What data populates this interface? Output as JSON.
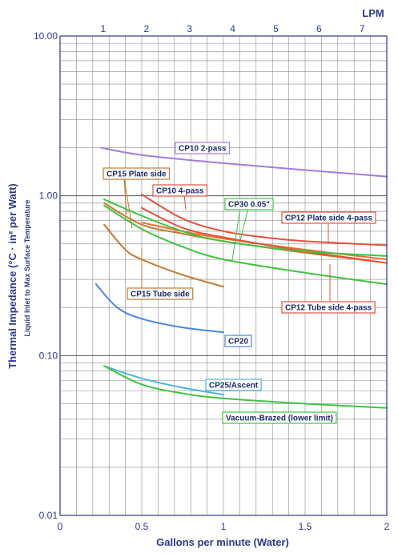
{
  "chart_data": {
    "type": "line",
    "x_axis": {
      "label": "Gallons per minute (Water)",
      "range": [
        0,
        2
      ],
      "ticks": [
        0,
        0.5,
        1,
        1.5,
        2
      ],
      "tick_labels": [
        "0",
        "0.5",
        "1",
        "1.5",
        "2"
      ]
    },
    "secondary_x_axis": {
      "label": "LPM",
      "ticks": [
        1,
        2,
        3,
        4,
        5,
        6,
        7
      ],
      "tick_labels": [
        "1",
        "2",
        "3",
        "4",
        "5",
        "6",
        "7"
      ]
    },
    "y_axis": {
      "label": "Thermal Impedance (°C · in² per Watt)",
      "sublabel": "Liquid Inlet to Max Surface Temperature",
      "scale": "log",
      "range": [
        0.01,
        10
      ],
      "ticks": [
        0.01,
        0.1,
        1,
        10
      ],
      "tick_labels": [
        "0.01",
        "0.10",
        "1.00",
        "10.00"
      ]
    },
    "grid": true,
    "series": [
      {
        "name": "CP10 2-pass",
        "color": "#a678e0",
        "x": [
          0.25,
          0.5,
          1.0,
          1.5,
          2.0
        ],
        "y": [
          2.0,
          1.8,
          1.6,
          1.45,
          1.32
        ]
      },
      {
        "name": "CP10 4-pass",
        "color": "#e2523a",
        "x": [
          0.5,
          0.75,
          1.0,
          1.25,
          1.5,
          2.0
        ],
        "y": [
          1.02,
          0.72,
          0.6,
          0.55,
          0.52,
          0.49
        ]
      },
      {
        "name": "CP15 Plate side",
        "color": "#c47a2e",
        "x": [
          0.27,
          0.5,
          0.75,
          1.0,
          1.5,
          2.0
        ],
        "y": [
          0.9,
          0.66,
          0.58,
          0.52,
          0.44,
          0.38
        ]
      },
      {
        "name": "CP15 Tube side",
        "color": "#c47a2e",
        "x": [
          0.27,
          0.4,
          0.5,
          0.75,
          1.0
        ],
        "y": [
          0.66,
          0.46,
          0.4,
          0.32,
          0.27
        ]
      },
      {
        "name": "CP12 Plate side 4-pass",
        "color": "#f07030",
        "x": [
          0.5,
          0.75,
          1.0,
          1.5,
          2.0
        ],
        "y": [
          0.68,
          0.6,
          0.54,
          0.46,
          0.4
        ]
      },
      {
        "name": "CP12 Tube side 4-pass",
        "color": "#e2523a",
        "x": [
          0.5,
          0.75,
          1.0,
          1.5,
          2.0
        ],
        "y": [
          0.84,
          0.63,
          0.55,
          0.45,
          0.38
        ]
      },
      {
        "name": "CP30 0.05\"",
        "color": "#3ec43e",
        "x": [
          0.27,
          0.5,
          0.75,
          1.0,
          1.5,
          2.0
        ],
        "y": [
          0.95,
          0.75,
          0.6,
          0.52,
          0.45,
          0.42
        ]
      },
      {
        "name": "CP30 0.05\"",
        "color": "#3ec43e",
        "x": [
          0.27,
          0.5,
          0.75,
          1.0,
          1.5,
          2.0
        ],
        "y": [
          0.87,
          0.62,
          0.48,
          0.4,
          0.33,
          0.28
        ]
      },
      {
        "name": "CP20",
        "color": "#4a86e0",
        "x": [
          0.22,
          0.35,
          0.5,
          0.75,
          1.0
        ],
        "y": [
          0.28,
          0.2,
          0.17,
          0.15,
          0.14
        ]
      },
      {
        "name": "CP25/Ascent",
        "color": "#4ab4e8",
        "x": [
          0.27,
          0.5,
          0.75,
          1.0
        ],
        "y": [
          0.086,
          0.072,
          0.063,
          0.057
        ]
      },
      {
        "name": "Vacuum-Brazed (lower limit)",
        "color": "#3ec43e",
        "x": [
          0.27,
          0.5,
          0.75,
          1.0,
          1.5,
          2.0
        ],
        "y": [
          0.086,
          0.066,
          0.058,
          0.054,
          0.05,
          0.047
        ]
      }
    ],
    "annotations": [
      {
        "text": "CP10 2-pass",
        "border": "#a678e0"
      },
      {
        "text": "CP15 Plate side",
        "border": "#c47a2e"
      },
      {
        "text": "CP10 4-pass",
        "border": "#e2523a"
      },
      {
        "text": "CP30 0.05\"",
        "border": "#3ec43e"
      },
      {
        "text": "CP12 Plate side 4-pass",
        "border": "#e2523a"
      },
      {
        "text": "CP15 Tube side",
        "border": "#c47a2e"
      },
      {
        "text": "CP12 Tube side 4-pass",
        "border": "#e2523a"
      },
      {
        "text": "CP20",
        "border": "#4a86e0"
      },
      {
        "text": "CP25/Ascent",
        "border": "#4ab4e8"
      },
      {
        "text": "Vacuum-Brazed (lower limit)",
        "border": "#3ec43e"
      }
    ],
    "colors": {
      "axis_text": "#2b3a8c",
      "plot_border": "#2b3a8c",
      "grid": "#8a8a8a"
    }
  }
}
